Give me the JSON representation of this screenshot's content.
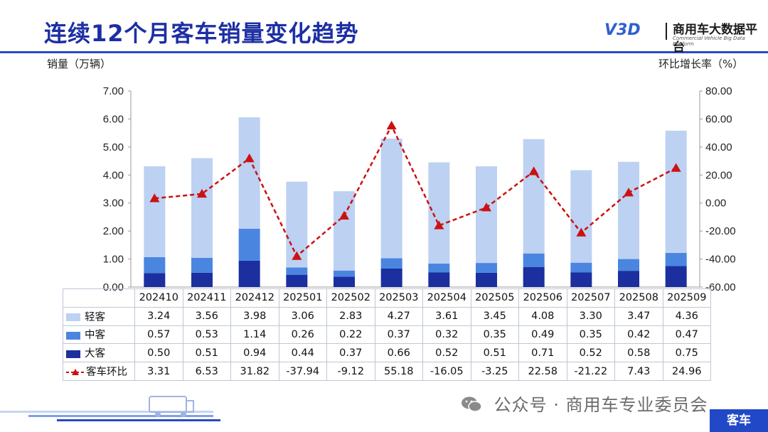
{
  "page": {
    "title": "连续12个月客车销量变化趋势",
    "logo_text": "商用车大数据平台",
    "logo_subtext": "Commercial Vehicle Big Data Platform",
    "logo_mark": "V3D",
    "wechat_text": "公众号 · 商用车专业委员会",
    "corner_tag": "客车"
  },
  "chart_data": {
    "type": "bar",
    "stacked": true,
    "ylabel": "销量（万辆）",
    "y2label": "环比增长率（%）",
    "ylim": [
      0,
      7
    ],
    "y2lim": [
      -60,
      80
    ],
    "yticks": [
      "0.00",
      "1.00",
      "2.00",
      "3.00",
      "4.00",
      "5.00",
      "6.00",
      "7.00"
    ],
    "y2ticks": [
      "-60.00",
      "-40.00",
      "-20.00",
      "0.00",
      "20.00",
      "40.00",
      "60.00",
      "80.00"
    ],
    "categories": [
      "202410",
      "202411",
      "202412",
      "202501",
      "202502",
      "202503",
      "202504",
      "202505",
      "202506",
      "202507",
      "202508",
      "202509"
    ],
    "series": [
      {
        "name": "大客",
        "kind": "bar",
        "color": "#1b2f9e",
        "values": [
          0.5,
          0.51,
          0.94,
          0.44,
          0.37,
          0.66,
          0.52,
          0.51,
          0.71,
          0.52,
          0.58,
          0.75
        ],
        "labels": [
          "0.50",
          "0.51",
          "0.94",
          "0.44",
          "0.37",
          "0.66",
          "0.52",
          "0.51",
          "0.71",
          "0.52",
          "0.58",
          "0.75"
        ]
      },
      {
        "name": "中客",
        "kind": "bar",
        "color": "#4a86e0",
        "values": [
          0.57,
          0.53,
          1.14,
          0.26,
          0.22,
          0.37,
          0.32,
          0.35,
          0.49,
          0.35,
          0.42,
          0.47
        ],
        "labels": [
          "0.57",
          "0.53",
          "1.14",
          "0.26",
          "0.22",
          "0.37",
          "0.32",
          "0.35",
          "0.49",
          "0.35",
          "0.42",
          "0.47"
        ]
      },
      {
        "name": "轻客",
        "kind": "bar",
        "color": "#bdd1f2",
        "values": [
          3.24,
          3.56,
          3.98,
          3.06,
          2.83,
          4.27,
          3.61,
          3.45,
          4.08,
          3.3,
          3.47,
          4.36
        ],
        "labels": [
          "3.24",
          "3.56",
          "3.98",
          "3.06",
          "2.83",
          "4.27",
          "3.61",
          "3.45",
          "4.08",
          "3.30",
          "3.47",
          "4.36"
        ]
      },
      {
        "name": "客车环比",
        "kind": "line",
        "axis": "right",
        "color": "#cc1111",
        "values": [
          3.31,
          6.53,
          31.82,
          -37.94,
          -9.12,
          55.18,
          -16.05,
          -3.25,
          22.58,
          -21.22,
          7.43,
          24.96
        ],
        "labels": [
          "3.31",
          "6.53",
          "31.82",
          "-37.94",
          "-9.12",
          "55.18",
          "-16.05",
          "-3.25",
          "22.58",
          "-21.22",
          "7.43",
          "24.96"
        ]
      }
    ],
    "table_row_order": [
      "轻客",
      "中客",
      "大客",
      "客车环比"
    ]
  }
}
